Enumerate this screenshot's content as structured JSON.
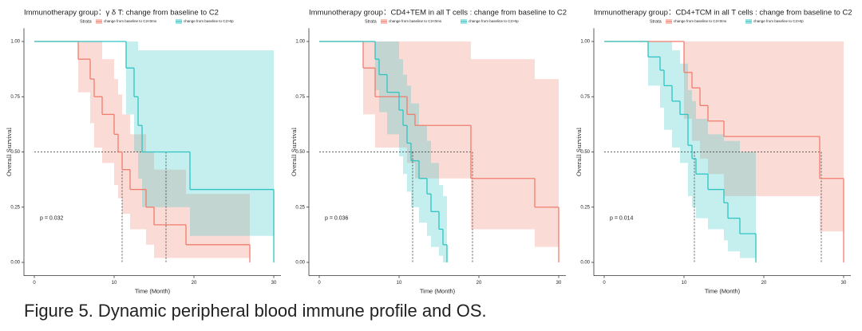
{
  "caption": "Figure 5. Dynamic peripheral blood immune profile and OS.",
  "chart_data": [
    {
      "type": "step",
      "title": "Immunotherapy group：γ δ T: change from baseline to C2",
      "legend_title": "Strata",
      "xlabel": "Time (Month)",
      "ylabel": "Overall Survival",
      "annotation": "p = 0.032",
      "xlim": [
        -1.3,
        30.9
      ],
      "ylim": [
        -0.06,
        1.06
      ],
      "xticks": [
        0,
        10,
        20,
        30
      ],
      "yticks": [
        {
          "value": 0,
          "label": "0.00"
        },
        {
          "value": 0.25,
          "label": "0.25"
        },
        {
          "value": 0.5,
          "label": "0.50"
        },
        {
          "value": 0.75,
          "label": "0.75"
        },
        {
          "value": 1,
          "label": "1.00"
        }
      ],
      "median_y": 0.5,
      "series": [
        {
          "name": "change from baseline to C2<0ms",
          "color": "#f07c6c",
          "x": [
            0,
            5.5,
            7,
            7.5,
            8.5,
            10,
            10.5,
            11,
            12,
            14,
            15,
            19,
            27
          ],
          "values": [
            1,
            0.92,
            0.83,
            0.75,
            0.67,
            0.58,
            0.5,
            0.42,
            0.33,
            0.25,
            0.17,
            0.08,
            0
          ],
          "lower": [
            1,
            0.77,
            0.63,
            0.52,
            0.45,
            0.35,
            0.29,
            0.22,
            0.15,
            0.08,
            0.02,
            0.02,
            0
          ],
          "upper": [
            1,
            1,
            1,
            1,
            0.92,
            0.83,
            0.76,
            0.67,
            0.58,
            0.5,
            0.42,
            0.31,
            0
          ],
          "median": 11
        },
        {
          "name": "change from baseline to C2>0p",
          "color": "#2ec4c4",
          "x": [
            0,
            11.5,
            12.5,
            13,
            13.5,
            19.5,
            30
          ],
          "values": [
            1,
            0.88,
            0.75,
            0.62,
            0.5,
            0.33,
            0
          ],
          "lower": [
            1,
            0.67,
            0.5,
            0.38,
            0.25,
            0.12,
            0
          ],
          "upper": [
            1,
            1,
            1,
            0.96,
            0.96,
            0.96,
            0
          ],
          "median": 16.5
        }
      ]
    },
    {
      "type": "step",
      "title": "Immunotherapy group：CD4+TEM in all T cells : change from baseline to C2",
      "legend_title": "Strata",
      "xlabel": "Time (Month)",
      "ylabel": "Overall Survival",
      "annotation": "p = 0.036",
      "xlim": [
        -1.3,
        30.9
      ],
      "ylim": [
        -0.06,
        1.06
      ],
      "xticks": [
        0,
        10,
        20,
        30
      ],
      "yticks": [
        {
          "value": 0,
          "label": "0.00"
        },
        {
          "value": 0.25,
          "label": "0.25"
        },
        {
          "value": 0.5,
          "label": "0.50"
        },
        {
          "value": 0.75,
          "label": "0.75"
        },
        {
          "value": 1,
          "label": "1.00"
        }
      ],
      "median_y": 0.5,
      "series": [
        {
          "name": "change from baseline to C2<0ms",
          "color": "#f07c6c",
          "x": [
            0,
            5.5,
            7,
            11,
            12,
            19,
            27,
            30
          ],
          "values": [
            1,
            0.88,
            0.75,
            0.67,
            0.62,
            0.38,
            0.25,
            0
          ],
          "lower": [
            1,
            0.67,
            0.52,
            0.45,
            0.38,
            0.15,
            0.07,
            0
          ],
          "upper": [
            1,
            1,
            1,
            1,
            1,
            0.92,
            0.83,
            0
          ],
          "median": 19.2
        },
        {
          "name": "change from baseline to C2>0p",
          "color": "#2ec4c4",
          "x": [
            0,
            7,
            7.5,
            8.5,
            10,
            10.5,
            11,
            11.5,
            12.5,
            13.5,
            14,
            15,
            15.5,
            16
          ],
          "values": [
            1,
            0.92,
            0.85,
            0.77,
            0.69,
            0.62,
            0.54,
            0.46,
            0.38,
            0.31,
            0.23,
            0.15,
            0.08,
            0
          ],
          "lower": [
            1,
            0.78,
            0.68,
            0.58,
            0.48,
            0.4,
            0.32,
            0.25,
            0.18,
            0.12,
            0.07,
            0.03,
            0,
            0
          ],
          "upper": [
            1,
            1,
            1,
            1,
            0.92,
            0.85,
            0.8,
            0.72,
            0.62,
            0.55,
            0.45,
            0.35,
            0.3,
            0
          ],
          "median": 11.7
        }
      ]
    },
    {
      "type": "step",
      "title": "Immunotherapy group：CD4+TCM in all T cells : change from baseline to C2",
      "legend_title": "Strata",
      "xlabel": "Time (Month)",
      "ylabel": "Overall Survival",
      "annotation": "p = 0.014",
      "xlim": [
        -1.3,
        30.9
      ],
      "ylim": [
        -0.06,
        1.06
      ],
      "xticks": [
        0,
        10,
        20,
        30
      ],
      "yticks": [
        {
          "value": 0,
          "label": "0.00"
        },
        {
          "value": 0.25,
          "label": "0.25"
        },
        {
          "value": 0.5,
          "label": "0.50"
        },
        {
          "value": 0.75,
          "label": "0.75"
        },
        {
          "value": 1,
          "label": "1.00"
        }
      ],
      "median_y": 0.5,
      "series": [
        {
          "name": "change from baseline to C2<0ms",
          "color": "#f07c6c",
          "x": [
            0,
            10,
            11,
            12,
            13,
            15,
            27,
            30
          ],
          "values": [
            1,
            0.86,
            0.79,
            0.71,
            0.64,
            0.57,
            0.38,
            0
          ],
          "lower": [
            1,
            0.65,
            0.55,
            0.47,
            0.4,
            0.3,
            0.14,
            0
          ],
          "upper": [
            1,
            1,
            1,
            1,
            1,
            1,
            1,
            0
          ],
          "median": 27.2
        },
        {
          "name": "change from baseline to C2>0p",
          "color": "#2ec4c4",
          "x": [
            0,
            5.5,
            7,
            7.5,
            8.5,
            9.5,
            10.5,
            11,
            11.5,
            13,
            15,
            15.5,
            17,
            19
          ],
          "values": [
            1,
            0.93,
            0.87,
            0.8,
            0.73,
            0.67,
            0.53,
            0.47,
            0.4,
            0.33,
            0.27,
            0.2,
            0.13,
            0
          ],
          "lower": [
            1,
            0.8,
            0.7,
            0.6,
            0.52,
            0.45,
            0.3,
            0.25,
            0.2,
            0.15,
            0.1,
            0.05,
            0.02,
            0
          ],
          "upper": [
            1,
            1,
            1,
            1,
            0.96,
            0.9,
            0.78,
            0.73,
            0.65,
            0.58,
            0.55,
            0.55,
            0.5,
            0
          ],
          "median": 11.3
        }
      ]
    }
  ]
}
